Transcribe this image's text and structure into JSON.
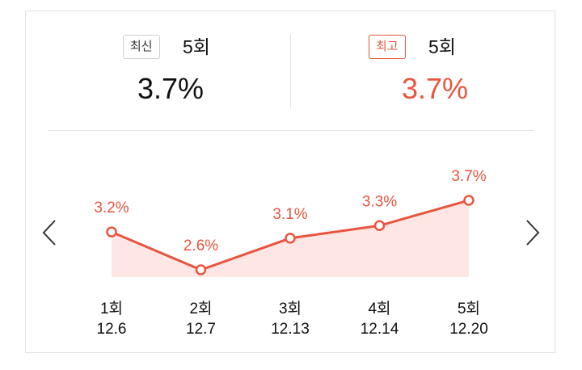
{
  "summary": {
    "latest": {
      "badge": "최신",
      "episode": "5회",
      "rating": "3.7%"
    },
    "best": {
      "badge": "최고",
      "episode": "5회",
      "rating": "3.7%"
    }
  },
  "nav": {
    "prev_icon": "chevron-left-icon",
    "next_icon": "chevron-right-icon"
  },
  "colors": {
    "accent": "#e8553f",
    "area_fill": "#fde6e4"
  },
  "chart_data": {
    "type": "area",
    "categories": [
      "1회",
      "2회",
      "3회",
      "4회",
      "5회"
    ],
    "dates": [
      "12.6",
      "12.7",
      "12.13",
      "12.14",
      "12.20"
    ],
    "values": [
      3.2,
      2.6,
      3.1,
      3.3,
      3.7
    ],
    "labels": [
      "3.2%",
      "2.6%",
      "3.1%",
      "3.3%",
      "3.7%"
    ],
    "unit": "%",
    "grid": false
  }
}
